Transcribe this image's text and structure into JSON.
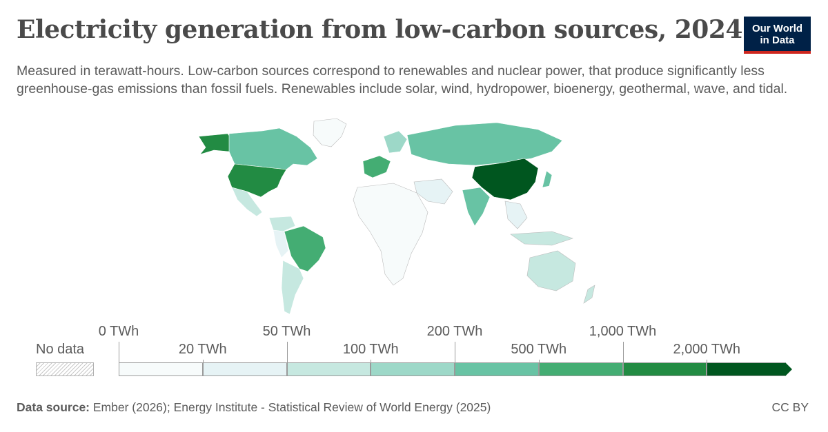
{
  "header": {
    "title": "Electricity generation from low-carbon sources, 2024",
    "subtitle": "Measured in terawatt-hours. Low-carbon sources correspond to renewables and nuclear power, that produce significantly less greenhouse-gas emissions than fossil fuels. Renewables include solar, wind, hydropower, bioenergy, geothermal, wave, and tidal.",
    "logo_line1": "Our World",
    "logo_line2": "in Data"
  },
  "legend": {
    "no_data_label": "No data",
    "upper_ticks": [
      "0 TWh",
      "50 TWh",
      "200 TWh",
      "1,000 TWh"
    ],
    "lower_ticks": [
      "20 TWh",
      "100 TWh",
      "500 TWh",
      "2,000 TWh"
    ],
    "bin_colors": [
      "#f7fbfb",
      "#e6f3f5",
      "#c6e8e0",
      "#9dd8c8",
      "#68c3a4",
      "#44ad73",
      "#228b43",
      "#00561f"
    ]
  },
  "map_data": {
    "type": "choropleth",
    "unit": "TWh",
    "regions": [
      {
        "name": "China",
        "bin": 7
      },
      {
        "name": "United States",
        "bin": 6
      },
      {
        "name": "Brazil",
        "bin": 5
      },
      {
        "name": "Canada",
        "bin": 4
      },
      {
        "name": "Russia",
        "bin": 4
      },
      {
        "name": "India",
        "bin": 4
      },
      {
        "name": "France",
        "bin": 5
      },
      {
        "name": "Japan",
        "bin": 4
      },
      {
        "name": "Australia",
        "bin": 3
      },
      {
        "name": "Argentina",
        "bin": 2
      },
      {
        "name": "Mexico",
        "bin": 2
      }
    ]
  },
  "footer": {
    "source_label": "Data source:",
    "source_text": " Ember (2026); Energy Institute - Statistical Review of World Energy (2025)",
    "license": "CC BY"
  }
}
